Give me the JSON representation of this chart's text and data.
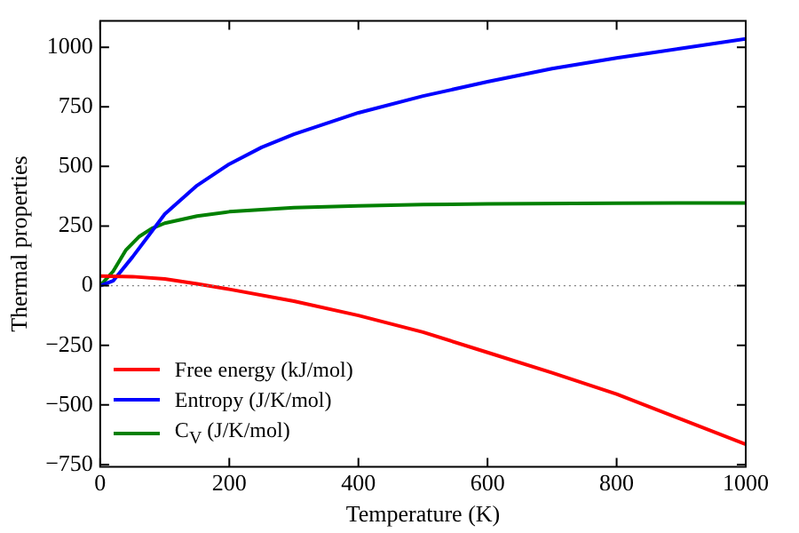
{
  "chart_data": {
    "type": "line",
    "xlabel": "Temperature (K)",
    "ylabel": "Thermal properties",
    "xlim": [
      0,
      1000
    ],
    "xticks": [
      0,
      200,
      400,
      600,
      800,
      1000
    ],
    "ylim": [
      -760,
      1110
    ],
    "yticks": [
      -750,
      -500,
      -250,
      0,
      250,
      500,
      750,
      1000
    ],
    "grid": false,
    "legend": "bottom left",
    "marker": "none",
    "line_style": "solid",
    "ref_lines": [
      {
        "axis": "y",
        "value": 0,
        "color": "#808080",
        "line_style": "dotted"
      }
    ],
    "series": [
      {
        "name": "Free energy (kJ/mol)",
        "color": "#ff0000",
        "x": [
          0,
          50,
          100,
          150,
          200,
          300,
          400,
          500,
          600,
          700,
          800,
          900,
          1000
        ],
        "values": [
          40,
          38,
          28,
          8,
          -15,
          -65,
          -125,
          -195,
          -280,
          -365,
          -455,
          -560,
          -665
        ]
      },
      {
        "name": "Entropy (J/K/mol)",
        "color": "#0000ff",
        "x": [
          0,
          20,
          50,
          75,
          100,
          150,
          200,
          250,
          300,
          400,
          500,
          600,
          700,
          800,
          900,
          1000
        ],
        "values": [
          0,
          20,
          120,
          210,
          300,
          420,
          510,
          580,
          635,
          725,
          795,
          855,
          910,
          955,
          995,
          1035
        ]
      },
      {
        "name": "C$_{V}$ (J/K/mol)",
        "color": "#008000",
        "x": [
          0,
          20,
          40,
          60,
          80,
          100,
          150,
          200,
          300,
          400,
          500,
          600,
          800,
          1000
        ],
        "values": [
          0,
          60,
          150,
          205,
          240,
          262,
          292,
          310,
          327,
          335,
          340,
          343,
          346,
          347
        ]
      }
    ]
  }
}
